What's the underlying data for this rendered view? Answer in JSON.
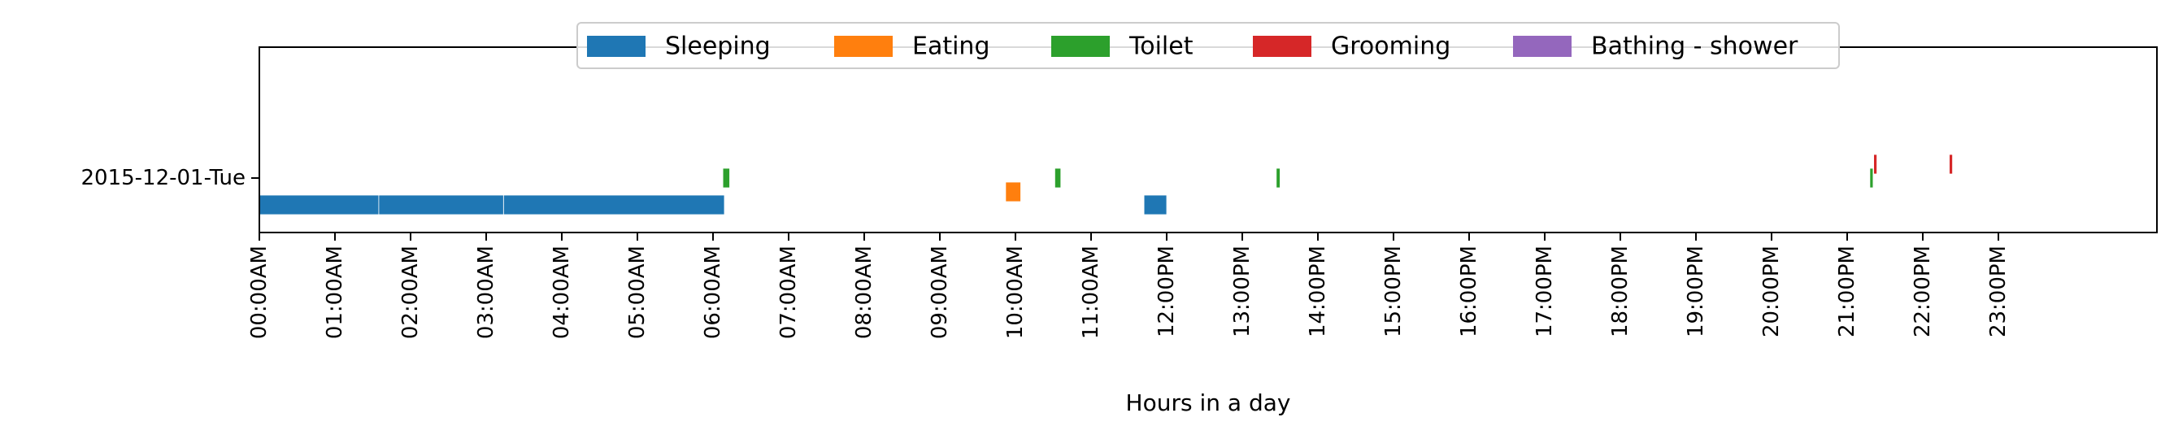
{
  "chart_data": {
    "type": "broken_barh",
    "title": "",
    "xlabel": "Hours in a day",
    "ylabel": "",
    "xlim": [
      0,
      24
    ],
    "grid": false,
    "legend": {
      "placement": "top-center",
      "entries": [
        {
          "name": "Sleeping",
          "color": "#1f77b4"
        },
        {
          "name": "Eating",
          "color": "#ff7f0e"
        },
        {
          "name": "Toilet",
          "color": "#2ca02c"
        },
        {
          "name": "Grooming",
          "color": "#d62728"
        },
        {
          "name": "Bathing - shower",
          "color": "#9467bd"
        }
      ]
    },
    "x_tick_labels": [
      "00:00AM",
      "01:00AM",
      "02:00AM",
      "03:00AM",
      "04:00AM",
      "05:00AM",
      "06:00AM",
      "07:00AM",
      "08:00AM",
      "09:00AM",
      "10:00AM",
      "11:00AM",
      "12:00PM",
      "13:00PM",
      "14:00PM",
      "15:00PM",
      "16:00PM",
      "17:00PM",
      "18:00PM",
      "19:00PM",
      "20:00PM",
      "21:00PM",
      "22:00PM",
      "23:00PM"
    ],
    "y_tick_labels": [
      "2015-12-01-Tue"
    ],
    "series": [
      {
        "name": "Sleeping",
        "lane": 0,
        "intervals": [
          [
            0.0,
            1.58
          ],
          [
            1.58,
            3.23
          ],
          [
            3.23,
            6.15
          ],
          [
            11.7,
            12.0
          ]
        ]
      },
      {
        "name": "Eating",
        "lane": 1,
        "intervals": [
          [
            9.87,
            10.07
          ]
        ]
      },
      {
        "name": "Toilet",
        "lane": 2,
        "intervals": [
          [
            6.13,
            6.22
          ],
          [
            10.52,
            10.6
          ],
          [
            13.45,
            13.5
          ],
          [
            21.3,
            21.34
          ]
        ]
      },
      {
        "name": "Grooming",
        "lane": 3,
        "intervals": [
          [
            21.35,
            21.38
          ],
          [
            22.35,
            22.38
          ]
        ]
      },
      {
        "name": "Bathing - shower",
        "lane": 4,
        "intervals": []
      }
    ]
  }
}
